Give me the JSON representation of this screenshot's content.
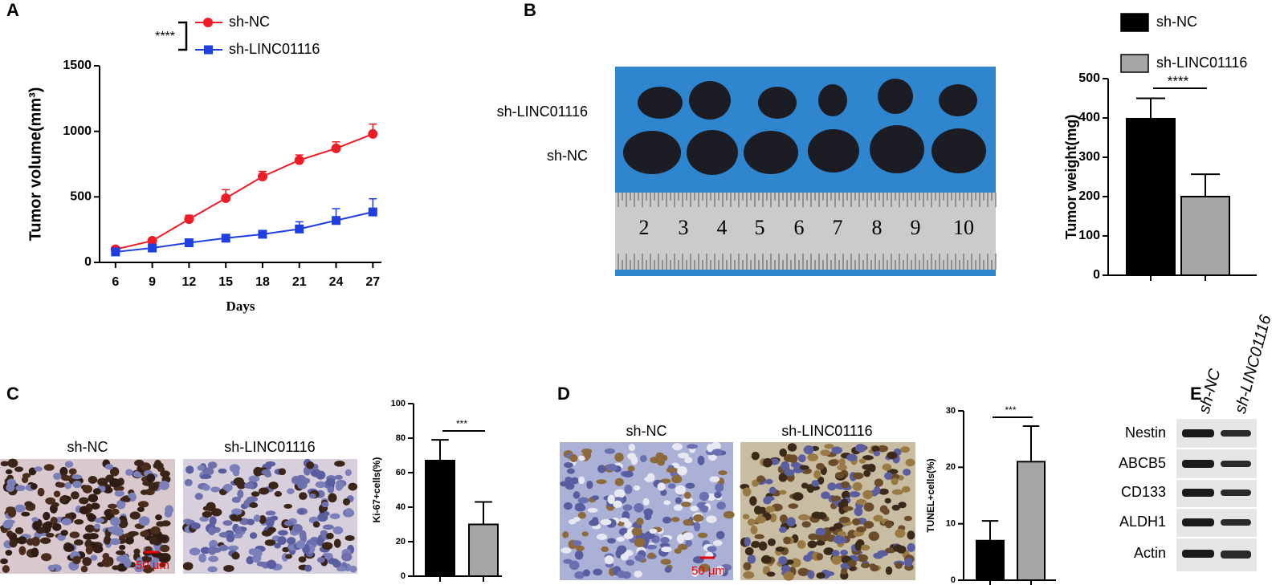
{
  "chart_data": [
    {
      "type": "line",
      "panel": "A",
      "ylabel": "Tumor volume(mm³)",
      "xlabel": "Days",
      "significance": "****",
      "x": [
        6,
        9,
        12,
        15,
        18,
        21,
        24,
        27
      ],
      "xlim": [
        4.7,
        27.7
      ],
      "xticks": [
        6,
        9,
        12,
        15,
        18,
        21,
        24,
        27
      ],
      "ylim": [
        0,
        1500
      ],
      "yticks": [
        0,
        500,
        1000,
        1500
      ],
      "series": [
        {
          "name": "sh-NC",
          "color": "#ee1c25",
          "marker": "circle",
          "values": [
            100,
            165,
            330,
            490,
            655,
            780,
            870,
            980
          ],
          "errors": [
            10,
            15,
            30,
            65,
            40,
            40,
            50,
            75
          ]
        },
        {
          "name": "sh-LINC01116",
          "color": "#1f3fe0",
          "marker": "square",
          "values": [
            80,
            110,
            150,
            185,
            215,
            255,
            320,
            385
          ],
          "errors": [
            10,
            15,
            15,
            25,
            25,
            55,
            90,
            100
          ]
        }
      ]
    },
    {
      "type": "bar",
      "panel": "B",
      "ylabel": "Tumor weight(mg)",
      "significance": "****",
      "legend": true,
      "categories": [
        "sh-NC",
        "sh-LINC01116"
      ],
      "colors": [
        "#000000",
        "#a6a6a6"
      ],
      "values": [
        398,
        200
      ],
      "errors": [
        52,
        57
      ],
      "ylim": [
        0,
        500
      ],
      "yticks": [
        0,
        100,
        200,
        300,
        400,
        500
      ]
    },
    {
      "type": "bar",
      "panel": "C",
      "ylabel": "Ki-67+cells(%)",
      "significance": "***",
      "legend": false,
      "categories": [
        null,
        null
      ],
      "colors": [
        "#000000",
        "#a6a6a6"
      ],
      "values": [
        67,
        30
      ],
      "errors": [
        12,
        13
      ],
      "ylim": [
        0,
        100
      ],
      "yticks": [
        0,
        20,
        40,
        60,
        80,
        100
      ]
    },
    {
      "type": "bar",
      "panel": "D",
      "ylabel": "TUNEL+cells(%)",
      "significance": "***",
      "legend": false,
      "categories": [
        null,
        null
      ],
      "colors": [
        "#000000",
        "#a6a6a6"
      ],
      "values": [
        7,
        21
      ],
      "errors": [
        3.5,
        6.3
      ],
      "ylim": [
        0,
        30
      ],
      "yticks": [
        0,
        10,
        20,
        30
      ]
    }
  ],
  "photo_b": {
    "rows": [
      "sh-LINC01116",
      "sh-NC"
    ],
    "ruler": [
      "2",
      "3",
      "4",
      "5",
      "6",
      "7",
      "8",
      "9",
      "10"
    ]
  },
  "photo_c": {
    "titles": [
      "sh-NC",
      "sh-LINC01116"
    ],
    "scale": "50 μm"
  },
  "photo_d": {
    "titles": [
      "sh-NC",
      "sh-LINC01116"
    ],
    "scale": "50 μm"
  },
  "blot": {
    "panel": "E",
    "lanes": [
      "sh-NC",
      "sh-LINC01116"
    ],
    "proteins": [
      "Nestin",
      "ABCB5",
      "CD133",
      "ALDH1",
      "Actin"
    ]
  }
}
